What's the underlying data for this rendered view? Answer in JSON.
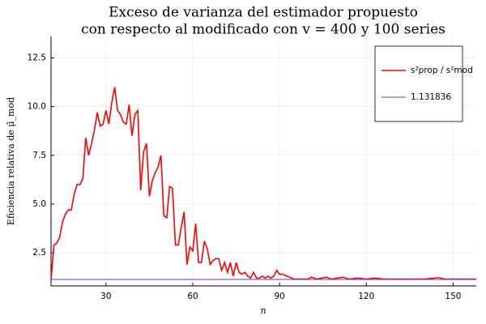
{
  "chart_data": {
    "type": "line",
    "title": [
      "Exceso de varianza del estimador propuesto",
      "con respecto al modificado con v = 400 y 100 series"
    ],
    "x_label": "n",
    "y_label": "Eficiencia relativa de μ̂_mod",
    "x": [
      11,
      12,
      13,
      14,
      15,
      16,
      17,
      18,
      19,
      20,
      21,
      22,
      23,
      24,
      25,
      26,
      27,
      28,
      29,
      30,
      31,
      32,
      33,
      34,
      35,
      36,
      37,
      38,
      39,
      40,
      41,
      42,
      43,
      44,
      45,
      46,
      47,
      48,
      49,
      50,
      51,
      52,
      53,
      54,
      55,
      56,
      57,
      58,
      59,
      60,
      61,
      62,
      63,
      64,
      65,
      66,
      67,
      68,
      69,
      70,
      71,
      72,
      73,
      74,
      75,
      76,
      77,
      78,
      79,
      80,
      81,
      82,
      83,
      84,
      85,
      86,
      87,
      88,
      89,
      90,
      91,
      95,
      100,
      101,
      103,
      106,
      108,
      112,
      114,
      117,
      120,
      123,
      126,
      130,
      135,
      140,
      145,
      147,
      150,
      155,
      158
    ],
    "series": [
      {
        "name": "s²prop / s²mod",
        "color": "#ff0000",
        "values": [
          1.1,
          2.9,
          3.0,
          3.3,
          4.1,
          4.5,
          4.7,
          4.7,
          5.5,
          6.0,
          6.0,
          6.3,
          8.4,
          7.5,
          8.1,
          8.8,
          9.7,
          9.0,
          9.1,
          9.8,
          9.1,
          10.2,
          11.0,
          9.8,
          9.6,
          9.2,
          9.1,
          10.1,
          8.5,
          9.6,
          9.8,
          5.7,
          7.7,
          8.1,
          5.4,
          6.2,
          6.6,
          6.9,
          7.5,
          4.4,
          4.3,
          5.9,
          5.8,
          2.9,
          2.9,
          3.8,
          4.6,
          1.9,
          2.8,
          2.6,
          4.0,
          2.0,
          2.0,
          3.1,
          2.7,
          1.9,
          2.1,
          2.2,
          2.2,
          1.6,
          2.0,
          1.5,
          2.0,
          1.3,
          2.0,
          1.5,
          1.4,
          1.5,
          1.3,
          1.2,
          1.5,
          1.2,
          1.2,
          1.3,
          1.2,
          1.3,
          1.2,
          1.3,
          1.6,
          1.4,
          1.4,
          1.15,
          1.15,
          1.25,
          1.15,
          1.25,
          1.15,
          1.25,
          1.15,
          1.2,
          1.15,
          1.2,
          1.15,
          1.15,
          1.15,
          1.15,
          1.22,
          1.15,
          1.15,
          1.15,
          1.15
        ]
      }
    ],
    "hlines": [
      {
        "name": "1.131836",
        "value": 1.131836,
        "color": "#7b2fbe"
      }
    ],
    "xlim": [
      11,
      158
    ],
    "xticks": [
      30,
      60,
      90,
      120,
      150
    ],
    "ylim": [
      0.8,
      13.6
    ],
    "yticks": [
      2.5,
      {
        "value": 5,
        "label": "5.0"
      },
      7.5,
      {
        "value": 10,
        "label": "10.0"
      },
      12.5
    ],
    "grid": true,
    "legend": "top-right"
  }
}
